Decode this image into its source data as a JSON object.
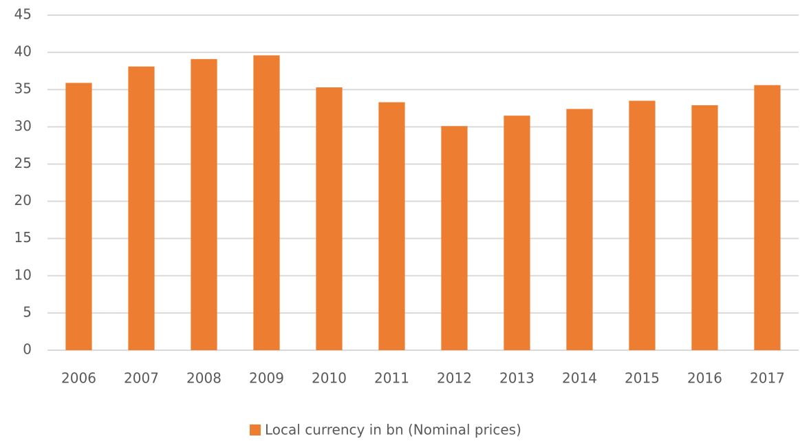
{
  "chart_data": {
    "type": "bar",
    "categories": [
      "2006",
      "2007",
      "2008",
      "2009",
      "2010",
      "2011",
      "2012",
      "2013",
      "2014",
      "2015",
      "2016",
      "2017"
    ],
    "series": [
      {
        "name": "Local currency in bn (Nominal prices)",
        "color": "#ed7d31",
        "values": [
          35.9,
          38.1,
          39.1,
          39.6,
          35.3,
          33.3,
          30.1,
          31.5,
          32.4,
          33.5,
          32.9,
          35.6
        ]
      }
    ],
    "ylim": [
      0,
      45
    ],
    "yticks": [
      0,
      5,
      10,
      15,
      20,
      25,
      30,
      35,
      40,
      45
    ],
    "grid": true,
    "legend": "bottom"
  }
}
